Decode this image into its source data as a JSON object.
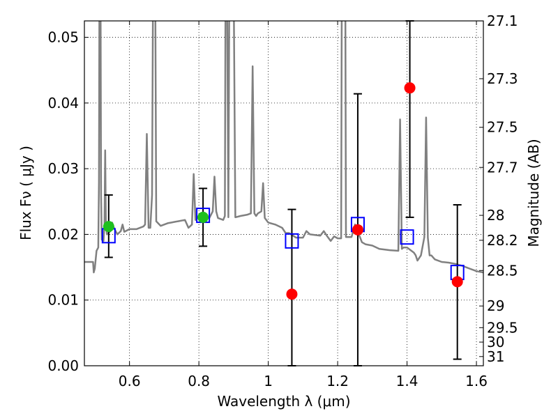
{
  "chart_data": {
    "type": "scatter",
    "xlabel": "Wavelength  λ (μm)",
    "ylabel": "Flux  Fν  ( μJy )",
    "y2label": "Magnitude (AB)",
    "xlim": [
      0.47,
      1.62
    ],
    "ylim": [
      0.0,
      0.0525
    ],
    "grid": true,
    "x_ticks": [
      {
        "value": 0.6,
        "label": "0.6"
      },
      {
        "value": 0.8,
        "label": "0.8"
      },
      {
        "value": 1.0,
        "label": "1"
      },
      {
        "value": 1.2,
        "label": "1.2"
      },
      {
        "value": 1.4,
        "label": "1.4"
      },
      {
        "value": 1.6,
        "label": "1.6"
      }
    ],
    "y_ticks": [
      {
        "value": 0.0,
        "label": "0.00"
      },
      {
        "value": 0.01,
        "label": "0.01"
      },
      {
        "value": 0.02,
        "label": "0.02"
      },
      {
        "value": 0.03,
        "label": "0.03"
      },
      {
        "value": 0.04,
        "label": "0.04"
      },
      {
        "value": 0.05,
        "label": "0.05"
      }
    ],
    "y2_ticks": [
      {
        "flux": 0.0525,
        "label": "27.1"
      },
      {
        "flux": 0.0437,
        "label": "27.3"
      },
      {
        "flux": 0.0363,
        "label": "27.5"
      },
      {
        "flux": 0.0302,
        "label": "27.7"
      },
      {
        "flux": 0.0229,
        "label": "28"
      },
      {
        "flux": 0.0191,
        "label": "28.2"
      },
      {
        "flux": 0.0145,
        "label": "28.5"
      },
      {
        "flux": 0.0091,
        "label": "29"
      },
      {
        "flux": 0.0058,
        "label": "29.5"
      },
      {
        "flux": 0.0036,
        "label": "30"
      },
      {
        "flux": 0.0014,
        "label": "31"
      }
    ],
    "series": [
      {
        "name": "model-spectrum",
        "kind": "line",
        "color": "#808080",
        "points": [
          [
            0.47,
            0.0158
          ],
          [
            0.495,
            0.0158
          ],
          [
            0.497,
            0.0142
          ],
          [
            0.5,
            0.0148
          ],
          [
            0.505,
            0.0175
          ],
          [
            0.51,
            0.018
          ],
          [
            0.512,
            0.028
          ],
          [
            0.5135,
            0.06
          ],
          [
            0.5165,
            0.06
          ],
          [
            0.518,
            0.026
          ],
          [
            0.52,
            0.0192
          ],
          [
            0.525,
            0.019
          ],
          [
            0.528,
            0.0215
          ],
          [
            0.53,
            0.0328
          ],
          [
            0.532,
            0.0215
          ],
          [
            0.535,
            0.02
          ],
          [
            0.545,
            0.0205
          ],
          [
            0.55,
            0.0218
          ],
          [
            0.555,
            0.021
          ],
          [
            0.565,
            0.02
          ],
          [
            0.575,
            0.0205
          ],
          [
            0.58,
            0.0215
          ],
          [
            0.585,
            0.0204
          ],
          [
            0.6,
            0.0208
          ],
          [
            0.62,
            0.0208
          ],
          [
            0.64,
            0.0212
          ],
          [
            0.645,
            0.0215
          ],
          [
            0.65,
            0.0353
          ],
          [
            0.655,
            0.021
          ],
          [
            0.66,
            0.021
          ],
          [
            0.665,
            0.026
          ],
          [
            0.668,
            0.06
          ],
          [
            0.674,
            0.06
          ],
          [
            0.677,
            0.022
          ],
          [
            0.69,
            0.0213
          ],
          [
            0.7,
            0.0215
          ],
          [
            0.71,
            0.0217
          ],
          [
            0.72,
            0.0218
          ],
          [
            0.73,
            0.0219
          ],
          [
            0.74,
            0.022
          ],
          [
            0.76,
            0.0222
          ],
          [
            0.77,
            0.021
          ],
          [
            0.78,
            0.0215
          ],
          [
            0.785,
            0.0292
          ],
          [
            0.79,
            0.0222
          ],
          [
            0.8,
            0.0228
          ],
          [
            0.81,
            0.023
          ],
          [
            0.82,
            0.0228
          ],
          [
            0.83,
            0.0225
          ],
          [
            0.84,
            0.0235
          ],
          [
            0.845,
            0.0288
          ],
          [
            0.85,
            0.0235
          ],
          [
            0.855,
            0.0225
          ],
          [
            0.87,
            0.0222
          ],
          [
            0.875,
            0.0228
          ],
          [
            0.877,
            0.06
          ],
          [
            0.881,
            0.06
          ],
          [
            0.885,
            0.0226
          ],
          [
            0.888,
            0.06
          ],
          [
            0.895,
            0.06
          ],
          [
            0.9,
            0.06
          ],
          [
            0.905,
            0.0226
          ],
          [
            0.92,
            0.0228
          ],
          [
            0.94,
            0.023
          ],
          [
            0.95,
            0.0232
          ],
          [
            0.955,
            0.0456
          ],
          [
            0.96,
            0.0232
          ],
          [
            0.965,
            0.0228
          ],
          [
            0.97,
            0.0232
          ],
          [
            0.98,
            0.0235
          ],
          [
            0.985,
            0.0278
          ],
          [
            0.99,
            0.0225
          ],
          [
            1.0,
            0.0218
          ],
          [
            1.02,
            0.0215
          ],
          [
            1.04,
            0.021
          ],
          [
            1.05,
            0.0202
          ],
          [
            1.06,
            0.0202
          ],
          [
            1.08,
            0.0195
          ],
          [
            1.1,
            0.0195
          ],
          [
            1.11,
            0.0205
          ],
          [
            1.12,
            0.02
          ],
          [
            1.15,
            0.0198
          ],
          [
            1.16,
            0.0205
          ],
          [
            1.17,
            0.0197
          ],
          [
            1.18,
            0.019
          ],
          [
            1.19,
            0.0197
          ],
          [
            1.2,
            0.0194
          ],
          [
            1.21,
            0.0194
          ],
          [
            1.212,
            0.06
          ],
          [
            1.222,
            0.06
          ],
          [
            1.224,
            0.0196
          ],
          [
            1.24,
            0.0196
          ],
          [
            1.25,
            0.0215
          ],
          [
            1.27,
            0.0188
          ],
          [
            1.28,
            0.0185
          ],
          [
            1.3,
            0.0183
          ],
          [
            1.32,
            0.0178
          ],
          [
            1.35,
            0.0176
          ],
          [
            1.375,
            0.0175
          ],
          [
            1.38,
            0.0375
          ],
          [
            1.385,
            0.0178
          ],
          [
            1.39,
            0.018
          ],
          [
            1.4,
            0.018
          ],
          [
            1.42,
            0.0172
          ],
          [
            1.425,
            0.0168
          ],
          [
            1.43,
            0.016
          ],
          [
            1.44,
            0.0168
          ],
          [
            1.45,
            0.0196
          ],
          [
            1.455,
            0.0378
          ],
          [
            1.46,
            0.0195
          ],
          [
            1.465,
            0.0168
          ],
          [
            1.47,
            0.0168
          ],
          [
            1.48,
            0.0162
          ],
          [
            1.5,
            0.0158
          ],
          [
            1.52,
            0.0157
          ],
          [
            1.54,
            0.0155
          ],
          [
            1.56,
            0.0152
          ],
          [
            1.58,
            0.0148
          ],
          [
            1.6,
            0.0144
          ],
          [
            1.62,
            0.0142
          ]
        ]
      },
      {
        "name": "observed-flux-green",
        "kind": "scatter",
        "color": "#1ec01e",
        "points": [
          {
            "x": 0.54,
            "y": 0.0212,
            "ylo": 0.0165,
            "yhi": 0.026
          },
          {
            "x": 0.812,
            "y": 0.0226,
            "ylo": 0.0182,
            "yhi": 0.027
          }
        ]
      },
      {
        "name": "observed-flux-red",
        "kind": "scatter",
        "color": "#ff0000",
        "points": [
          {
            "x": 1.068,
            "y": 0.0109,
            "ylo": 0.0,
            "yhi": 0.0238
          },
          {
            "x": 1.258,
            "y": 0.0207,
            "ylo": 0.0,
            "yhi": 0.0414
          },
          {
            "x": 1.408,
            "y": 0.0423,
            "ylo": 0.0226,
            "yhi": 0.0525
          },
          {
            "x": 1.545,
            "y": 0.0128,
            "ylo": 0.001,
            "yhi": 0.0245
          }
        ]
      },
      {
        "name": "model-band-flux",
        "kind": "square",
        "color": "#0000ff",
        "points": [
          {
            "x": 0.54,
            "y": 0.0198
          },
          {
            "x": 0.812,
            "y": 0.0229
          },
          {
            "x": 1.068,
            "y": 0.019
          },
          {
            "x": 1.258,
            "y": 0.0215
          },
          {
            "x": 1.4,
            "y": 0.0196
          },
          {
            "x": 1.545,
            "y": 0.0142
          }
        ]
      }
    ]
  }
}
